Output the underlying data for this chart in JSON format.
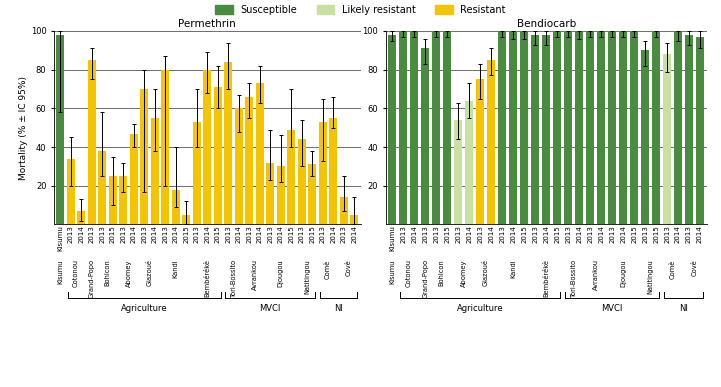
{
  "permethrin_bars": [
    {
      "loc": "Kisumu",
      "year": "",
      "val": 98,
      "err_lo": 58,
      "err_hi": 100,
      "color": "susceptible"
    },
    {
      "loc": "Cotonou",
      "year": "2013",
      "val": 34,
      "err_lo": 20,
      "err_hi": 45,
      "color": "resistant"
    },
    {
      "loc": "Cotonou",
      "year": "2014",
      "val": 7,
      "err_lo": 2,
      "err_hi": 13,
      "color": "resistant"
    },
    {
      "loc": "Grand-Popo",
      "year": "2013",
      "val": 85,
      "err_lo": 75,
      "err_hi": 91,
      "color": "resistant"
    },
    {
      "loc": "Bohicon",
      "year": "2013",
      "val": 38,
      "err_lo": 25,
      "err_hi": 58,
      "color": "resistant"
    },
    {
      "loc": "Bohicon",
      "year": "2015",
      "val": 25,
      "err_lo": 10,
      "err_hi": 35,
      "color": "resistant"
    },
    {
      "loc": "Abomey",
      "year": "2013",
      "val": 25,
      "err_lo": 17,
      "err_hi": 32,
      "color": "resistant"
    },
    {
      "loc": "Abomey",
      "year": "2014",
      "val": 47,
      "err_lo": 40,
      "err_hi": 52,
      "color": "resistant"
    },
    {
      "loc": "Glazoué",
      "year": "2013",
      "val": 70,
      "err_lo": 17,
      "err_hi": 80,
      "color": "resistant"
    },
    {
      "loc": "Glazoué",
      "year": "2014",
      "val": 55,
      "err_lo": 38,
      "err_hi": 70,
      "color": "resistant"
    },
    {
      "loc": "Kandi",
      "year": "2013",
      "val": 80,
      "err_lo": 20,
      "err_hi": 87,
      "color": "resistant"
    },
    {
      "loc": "Kandi",
      "year": "2014",
      "val": 18,
      "err_lo": 9,
      "err_hi": 40,
      "color": "resistant"
    },
    {
      "loc": "Kandi",
      "year": "2015",
      "val": 5,
      "err_lo": 0,
      "err_hi": 12,
      "color": "resistant"
    },
    {
      "loc": "Bembérékè",
      "year": "2013",
      "val": 53,
      "err_lo": 40,
      "err_hi": 70,
      "color": "resistant"
    },
    {
      "loc": "Bembérékè",
      "year": "2014",
      "val": 80,
      "err_lo": 68,
      "err_hi": 89,
      "color": "resistant"
    },
    {
      "loc": "Bembérékè",
      "year": "2015",
      "val": 71,
      "err_lo": 60,
      "err_hi": 82,
      "color": "resistant"
    },
    {
      "loc": "Tori-Bossito",
      "year": "2013",
      "val": 84,
      "err_lo": 70,
      "err_hi": 94,
      "color": "resistant"
    },
    {
      "loc": "Tori-Bossito",
      "year": "2014",
      "val": 60,
      "err_lo": 48,
      "err_hi": 67,
      "color": "resistant"
    },
    {
      "loc": "Avrankou",
      "year": "2013",
      "val": 66,
      "err_lo": 55,
      "err_hi": 73,
      "color": "resistant"
    },
    {
      "loc": "Avrankou",
      "year": "2014",
      "val": 73,
      "err_lo": 63,
      "err_hi": 82,
      "color": "resistant"
    },
    {
      "loc": "Djougou",
      "year": "2013",
      "val": 32,
      "err_lo": 23,
      "err_hi": 49,
      "color": "resistant"
    },
    {
      "loc": "Djougou",
      "year": "2014",
      "val": 30,
      "err_lo": 22,
      "err_hi": 46,
      "color": "resistant"
    },
    {
      "loc": "Djougou",
      "year": "2015",
      "val": 49,
      "err_lo": 40,
      "err_hi": 70,
      "color": "resistant"
    },
    {
      "loc": "Natitingou",
      "year": "2013",
      "val": 44,
      "err_lo": 30,
      "err_hi": 54,
      "color": "resistant"
    },
    {
      "loc": "Natitingou",
      "year": "2015",
      "val": 31,
      "err_lo": 25,
      "err_hi": 38,
      "color": "resistant"
    },
    {
      "loc": "Comè",
      "year": "2013",
      "val": 53,
      "err_lo": 33,
      "err_hi": 65,
      "color": "resistant"
    },
    {
      "loc": "Comè",
      "year": "2014",
      "val": 55,
      "err_lo": 50,
      "err_hi": 66,
      "color": "resistant"
    },
    {
      "loc": "Covè",
      "year": "2013",
      "val": 14,
      "err_lo": 7,
      "err_hi": 25,
      "color": "resistant"
    },
    {
      "loc": "Covè",
      "year": "2014",
      "val": 5,
      "err_lo": 0,
      "err_hi": 14,
      "color": "resistant"
    }
  ],
  "bendiocarb_bars": [
    {
      "loc": "Kisumu",
      "year": "",
      "val": 98,
      "err_lo": 95,
      "err_hi": 100,
      "color": "susceptible"
    },
    {
      "loc": "Cotonou",
      "year": "2013",
      "val": 100,
      "err_lo": 97,
      "err_hi": 100,
      "color": "susceptible"
    },
    {
      "loc": "Cotonou",
      "year": "2014",
      "val": 100,
      "err_lo": 97,
      "err_hi": 100,
      "color": "susceptible"
    },
    {
      "loc": "Grand-Popo",
      "year": "2013",
      "val": 91,
      "err_lo": 83,
      "err_hi": 96,
      "color": "susceptible"
    },
    {
      "loc": "Bohicon",
      "year": "2013",
      "val": 100,
      "err_lo": 97,
      "err_hi": 100,
      "color": "susceptible"
    },
    {
      "loc": "Bohicon",
      "year": "2015",
      "val": 100,
      "err_lo": 97,
      "err_hi": 100,
      "color": "susceptible"
    },
    {
      "loc": "Abomey",
      "year": "2013",
      "val": 54,
      "err_lo": 44,
      "err_hi": 63,
      "color": "likely_resistant"
    },
    {
      "loc": "Abomey",
      "year": "2014",
      "val": 64,
      "err_lo": 55,
      "err_hi": 73,
      "color": "likely_resistant"
    },
    {
      "loc": "Glazoué",
      "year": "2013",
      "val": 75,
      "err_lo": 65,
      "err_hi": 83,
      "color": "resistant"
    },
    {
      "loc": "Glazoué",
      "year": "2014",
      "val": 85,
      "err_lo": 77,
      "err_hi": 91,
      "color": "resistant"
    },
    {
      "loc": "Kandi",
      "year": "2013",
      "val": 100,
      "err_lo": 97,
      "err_hi": 100,
      "color": "susceptible"
    },
    {
      "loc": "Kandi",
      "year": "2014",
      "val": 100,
      "err_lo": 96,
      "err_hi": 100,
      "color": "susceptible"
    },
    {
      "loc": "Kandi",
      "year": "2015",
      "val": 100,
      "err_lo": 96,
      "err_hi": 100,
      "color": "susceptible"
    },
    {
      "loc": "Bembérékè",
      "year": "2013",
      "val": 98,
      "err_lo": 93,
      "err_hi": 100,
      "color": "susceptible"
    },
    {
      "loc": "Bembérékè",
      "year": "2014",
      "val": 98,
      "err_lo": 93,
      "err_hi": 100,
      "color": "susceptible"
    },
    {
      "loc": "Bembérékè",
      "year": "2015",
      "val": 100,
      "err_lo": 97,
      "err_hi": 100,
      "color": "susceptible"
    },
    {
      "loc": "Tori-Bossito",
      "year": "2013",
      "val": 100,
      "err_lo": 97,
      "err_hi": 100,
      "color": "susceptible"
    },
    {
      "loc": "Tori-Bossito",
      "year": "2014",
      "val": 100,
      "err_lo": 96,
      "err_hi": 100,
      "color": "susceptible"
    },
    {
      "loc": "Avrankou",
      "year": "2013",
      "val": 100,
      "err_lo": 97,
      "err_hi": 100,
      "color": "susceptible"
    },
    {
      "loc": "Avrankou",
      "year": "2014",
      "val": 100,
      "err_lo": 97,
      "err_hi": 100,
      "color": "susceptible"
    },
    {
      "loc": "Djougou",
      "year": "2013",
      "val": 100,
      "err_lo": 97,
      "err_hi": 100,
      "color": "susceptible"
    },
    {
      "loc": "Djougou",
      "year": "2014",
      "val": 100,
      "err_lo": 97,
      "err_hi": 100,
      "color": "susceptible"
    },
    {
      "loc": "Djougou",
      "year": "2015",
      "val": 100,
      "err_lo": 97,
      "err_hi": 100,
      "color": "susceptible"
    },
    {
      "loc": "Natitingou",
      "year": "2013",
      "val": 90,
      "err_lo": 82,
      "err_hi": 95,
      "color": "susceptible"
    },
    {
      "loc": "Natitingou",
      "year": "2015",
      "val": 100,
      "err_lo": 97,
      "err_hi": 100,
      "color": "susceptible"
    },
    {
      "loc": "Comè",
      "year": "2013",
      "val": 88,
      "err_lo": 79,
      "err_hi": 94,
      "color": "likely_resistant"
    },
    {
      "loc": "Comè",
      "year": "2014",
      "val": 100,
      "err_lo": 95,
      "err_hi": 100,
      "color": "susceptible"
    },
    {
      "loc": "Covè",
      "year": "2013",
      "val": 98,
      "err_lo": 93,
      "err_hi": 100,
      "color": "susceptible"
    },
    {
      "loc": "Covè",
      "year": "2014",
      "val": 97,
      "err_lo": 91,
      "err_hi": 100,
      "color": "susceptible"
    }
  ],
  "colors": {
    "susceptible": "#4a8c3f",
    "likely_resistant": "#c8e0a0",
    "resistant": "#f5c400"
  },
  "agri_locs": [
    "Cotonou",
    "Grand-Popo",
    "Bohicon",
    "Abomey",
    "Glazoué",
    "Kandi",
    "Bembérékè"
  ],
  "mvci_locs": [
    "Tori-Bossito",
    "Avrankou",
    "Djougou",
    "Natitingou"
  ],
  "ni_locs": [
    "Comè",
    "Covè"
  ],
  "ylabel": "Mortality (% ± IC 95%)",
  "title_permethrin": "Permethrin",
  "title_bendiocarb": "Bendiocarb",
  "legend_susceptible": "Susceptible",
  "legend_likely": "Likely resistant",
  "legend_resistant": "Resistant"
}
